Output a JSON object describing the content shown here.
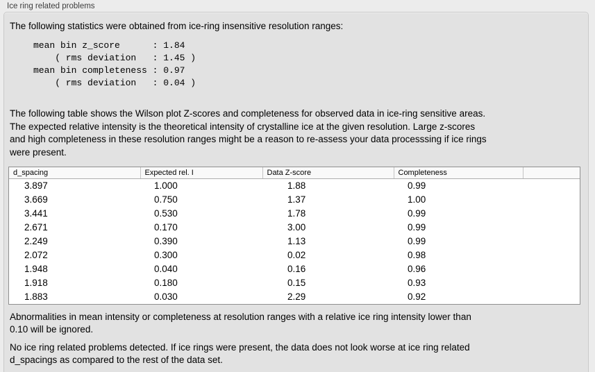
{
  "panel": {
    "title": "Ice ring related problems"
  },
  "intro": "The following statistics were obtained from ice-ring insensitive resolution ranges:",
  "stats": {
    "block": "mean bin z_score      : 1.84\n    ( rms deviation   : 1.45 )\nmean bin completeness : 0.97\n    ( rms deviation   : 0.04 )"
  },
  "table_description": "The following table shows the Wilson plot Z-scores and completeness for observed data in ice-ring sensitive areas.\nThe expected relative intensity is the theoretical intensity of crystalline ice at the given resolution. Large z-scores\nand high completeness in these resolution ranges might be a reason to re-assess your data processsing if ice rings\nwere present.",
  "table": {
    "columns": [
      "d_spacing",
      "Expected rel. I",
      "Data Z-score",
      "Completeness"
    ],
    "rows": [
      [
        "3.897",
        "1.000",
        "1.88",
        "0.99"
      ],
      [
        "3.669",
        "0.750",
        "1.37",
        "1.00"
      ],
      [
        "3.441",
        "0.530",
        "1.78",
        "0.99"
      ],
      [
        "2.671",
        "0.170",
        "3.00",
        "0.99"
      ],
      [
        "2.249",
        "0.390",
        "1.13",
        "0.99"
      ],
      [
        "2.072",
        "0.300",
        "0.02",
        "0.98"
      ],
      [
        "1.948",
        "0.040",
        "0.16",
        "0.96"
      ],
      [
        "1.918",
        "0.180",
        "0.15",
        "0.93"
      ],
      [
        "1.883",
        "0.030",
        "2.29",
        "0.92"
      ]
    ]
  },
  "notes": {
    "ignore_note": "Abnormalities in mean intensity or completeness at resolution ranges with a relative ice ring intensity lower than\n0.10 will be ignored.",
    "conclusion": "No ice ring related problems detected. If ice rings were present, the data does not look worse at ice ring related\nd_spacings as compared to the rest of the data set."
  }
}
